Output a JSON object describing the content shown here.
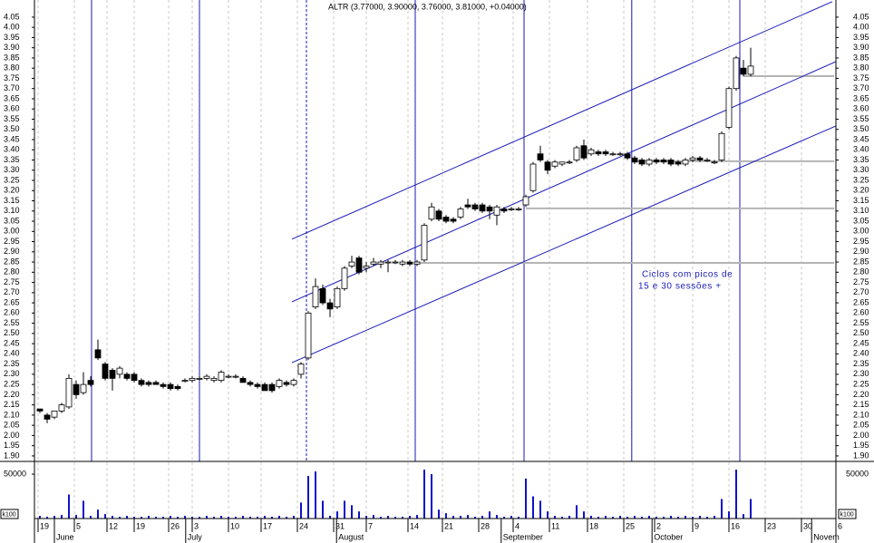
{
  "chart_data": {
    "type": "candlestick",
    "title": "ALTR (3.77000, 3.90000, 3.76000, 3.81000, +0.04000)",
    "annotation": [
      "Ciclos com picos de",
      "15 e 30 sessões +"
    ],
    "up_color": "#ffffff",
    "down_color": "#000000",
    "line_color": "#1a1ab8",
    "level_color": "#b4b4b4",
    "volume_color": "#1010c8",
    "grid": true,
    "xlim": [
      -0.75,
      109.75
    ],
    "xticks": [
      {
        "value": -0.25,
        "label": "19"
      },
      {
        "value": 4.75,
        "label": "5"
      },
      {
        "value": 9.25,
        "label": "12"
      },
      {
        "value": 13,
        "label": "19"
      },
      {
        "value": 17.75,
        "label": "26"
      },
      {
        "value": 21,
        "label": "3"
      },
      {
        "value": 26,
        "label": "10"
      },
      {
        "value": 30.5,
        "label": "17"
      },
      {
        "value": 35.5,
        "label": "24"
      },
      {
        "value": 40.5,
        "label": "31"
      },
      {
        "value": 45,
        "label": "7"
      },
      {
        "value": 50.75,
        "label": "14"
      },
      {
        "value": 55.5,
        "label": "21"
      },
      {
        "value": 60.5,
        "label": "28"
      },
      {
        "value": 65.25,
        "label": "4"
      },
      {
        "value": 70.25,
        "label": "11"
      },
      {
        "value": 75.5,
        "label": "18"
      },
      {
        "value": 80.5,
        "label": "25"
      },
      {
        "value": 84.75,
        "label": "2"
      },
      {
        "value": 90,
        "label": "9"
      },
      {
        "value": 95,
        "label": "16"
      },
      {
        "value": 100,
        "label": "23"
      },
      {
        "value": 105,
        "label": "30"
      },
      {
        "value": 109.75,
        "label": "6"
      }
    ],
    "month_labels": [
      {
        "value": 2,
        "label": "June"
      },
      {
        "value": 20.1,
        "label": "July"
      },
      {
        "value": 40.9,
        "label": "August"
      },
      {
        "value": 63.6,
        "label": "September"
      },
      {
        "value": 84.4,
        "label": "October"
      },
      {
        "value": 106.4,
        "label": "Novem"
      }
    ],
    "ylim": [
      1.873,
      4.134
    ],
    "yticks": [
      {
        "value": 1.9,
        "label": "1.90"
      },
      {
        "value": 1.95,
        "label": "1.95"
      },
      {
        "value": 2.0,
        "label": "2.00"
      },
      {
        "value": 2.05,
        "label": "2.05"
      },
      {
        "value": 2.1,
        "label": "2.10"
      },
      {
        "value": 2.15,
        "label": "2.15"
      },
      {
        "value": 2.2,
        "label": "2.20"
      },
      {
        "value": 2.25,
        "label": "2.25"
      },
      {
        "value": 2.3,
        "label": "2.30"
      },
      {
        "value": 2.35,
        "label": "2.35"
      },
      {
        "value": 2.4,
        "label": "2.40"
      },
      {
        "value": 2.45,
        "label": "2.45"
      },
      {
        "value": 2.5,
        "label": "2.50"
      },
      {
        "value": 2.55,
        "label": "2.55"
      },
      {
        "value": 2.6,
        "label": "2.60"
      },
      {
        "value": 2.65,
        "label": "2.65"
      },
      {
        "value": 2.7,
        "label": "2.70"
      },
      {
        "value": 2.75,
        "label": "2.75"
      },
      {
        "value": 2.8,
        "label": "2.80"
      },
      {
        "value": 2.85,
        "label": "2.85"
      },
      {
        "value": 2.9,
        "label": "2.90"
      },
      {
        "value": 2.95,
        "label": "2.95"
      },
      {
        "value": 3.0,
        "label": "3.00"
      },
      {
        "value": 3.05,
        "label": "3.05"
      },
      {
        "value": 3.1,
        "label": "3.10"
      },
      {
        "value": 3.15,
        "label": "3.15"
      },
      {
        "value": 3.2,
        "label": "3.20"
      },
      {
        "value": 3.25,
        "label": "3.25"
      },
      {
        "value": 3.3,
        "label": "3.30"
      },
      {
        "value": 3.35,
        "label": "3.35"
      },
      {
        "value": 3.4,
        "label": "3.40"
      },
      {
        "value": 3.45,
        "label": "3.45"
      },
      {
        "value": 3.5,
        "label": "3.50"
      },
      {
        "value": 3.55,
        "label": "3.55"
      },
      {
        "value": 3.6,
        "label": "3.60"
      },
      {
        "value": 3.65,
        "label": "3.65"
      },
      {
        "value": 3.7,
        "label": "3.70"
      },
      {
        "value": 3.75,
        "label": "3.75"
      },
      {
        "value": 3.8,
        "label": "3.80"
      },
      {
        "value": 3.85,
        "label": "3.85"
      },
      {
        "value": 3.9,
        "label": "3.90"
      },
      {
        "value": 3.95,
        "label": "3.95"
      },
      {
        "value": 4.0,
        "label": "4.00"
      },
      {
        "value": 4.05,
        "label": "4.05"
      }
    ],
    "vlim": [
      0,
      64286
    ],
    "vticks": [
      50000
    ],
    "volume_unit": "k100",
    "vlines": [
      7.125,
      22,
      36.75,
      51.75,
      66.75,
      81.6,
      96.5
    ],
    "dashed_vlines": [
      36.75
    ],
    "channel": [
      {
        "from": [
          34.75,
          2.962
        ],
        "to": [
          109.25,
          4.126
        ]
      },
      {
        "from": [
          34.75,
          2.655
        ],
        "to": [
          109.75,
          3.832
        ]
      },
      {
        "from": [
          34.75,
          2.357
        ],
        "to": [
          109.75,
          3.517
        ]
      }
    ],
    "levels": [
      {
        "value": 2.846,
        "from": 52,
        "to": 109.5
      },
      {
        "value": 3.113,
        "from": 67,
        "to": 109.5
      },
      {
        "value": 3.344,
        "from": 82,
        "to": 109.5
      },
      {
        "value": 3.761,
        "from": 97,
        "to": 109.5
      }
    ],
    "ohlc": [
      [
        2.13,
        2.13,
        2.11,
        2.12
      ],
      [
        2.1,
        2.11,
        2.06,
        2.08
      ],
      [
        2.09,
        2.12,
        2.08,
        2.12
      ],
      [
        2.12,
        2.16,
        2.11,
        2.15
      ],
      [
        2.14,
        2.3,
        2.13,
        2.28
      ],
      [
        2.25,
        2.27,
        2.18,
        2.2
      ],
      [
        2.21,
        2.31,
        2.2,
        2.25
      ],
      [
        2.27,
        2.29,
        2.24,
        2.25
      ],
      [
        2.42,
        2.47,
        2.37,
        2.38
      ],
      [
        2.35,
        2.36,
        2.27,
        2.28
      ],
      [
        2.32,
        2.33,
        2.22,
        2.28
      ],
      [
        2.3,
        2.34,
        2.28,
        2.33
      ],
      [
        2.3,
        2.31,
        2.27,
        2.28
      ],
      [
        2.3,
        2.31,
        2.26,
        2.27
      ],
      [
        2.27,
        2.28,
        2.24,
        2.25
      ],
      [
        2.26,
        2.27,
        2.24,
        2.25
      ],
      [
        2.26,
        2.27,
        2.25,
        2.25
      ],
      [
        2.25,
        2.26,
        2.23,
        2.24
      ],
      [
        2.25,
        2.26,
        2.22,
        2.23
      ],
      [
        2.24,
        2.25,
        2.22,
        2.23
      ],
      [
        2.27,
        2.28,
        2.26,
        2.27
      ],
      [
        2.27,
        2.29,
        2.26,
        2.28
      ],
      [
        2.28,
        2.29,
        2.27,
        2.28
      ],
      [
        2.28,
        2.3,
        2.27,
        2.29
      ],
      [
        2.27,
        2.29,
        2.26,
        2.28
      ],
      [
        2.27,
        2.32,
        2.26,
        2.31
      ],
      [
        2.29,
        2.3,
        2.28,
        2.29
      ],
      [
        2.29,
        2.3,
        2.28,
        2.29
      ],
      [
        2.28,
        2.29,
        2.26,
        2.26
      ],
      [
        2.26,
        2.27,
        2.24,
        2.25
      ],
      [
        2.25,
        2.26,
        2.23,
        2.24
      ],
      [
        2.25,
        2.26,
        2.22,
        2.22
      ],
      [
        2.25,
        2.26,
        2.21,
        2.22
      ],
      [
        2.24,
        2.28,
        2.23,
        2.27
      ],
      [
        2.26,
        2.27,
        2.24,
        2.25
      ],
      [
        2.25,
        2.28,
        2.24,
        2.27
      ],
      [
        2.3,
        2.36,
        2.28,
        2.35
      ],
      [
        2.38,
        2.61,
        2.37,
        2.6
      ],
      [
        2.63,
        2.77,
        2.62,
        2.73
      ],
      [
        2.72,
        2.74,
        2.64,
        2.65
      ],
      [
        2.65,
        2.67,
        2.58,
        2.62
      ],
      [
        2.63,
        2.73,
        2.62,
        2.72
      ],
      [
        2.72,
        2.83,
        2.71,
        2.82
      ],
      [
        2.83,
        2.88,
        2.82,
        2.85
      ],
      [
        2.87,
        2.88,
        2.79,
        2.8
      ],
      [
        2.82,
        2.85,
        2.8,
        2.83
      ],
      [
        2.84,
        2.87,
        2.83,
        2.85
      ],
      [
        2.84,
        2.86,
        2.82,
        2.85
      ],
      [
        2.85,
        2.86,
        2.8,
        2.85
      ],
      [
        2.85,
        2.86,
        2.84,
        2.85
      ],
      [
        2.84,
        2.86,
        2.83,
        2.85
      ],
      [
        2.85,
        2.86,
        2.83,
        2.84
      ],
      [
        2.84,
        2.86,
        2.83,
        2.85
      ],
      [
        2.86,
        3.04,
        2.85,
        3.03
      ],
      [
        3.06,
        3.14,
        3.05,
        3.12
      ],
      [
        3.1,
        3.11,
        3.05,
        3.06
      ],
      [
        3.07,
        3.08,
        3.04,
        3.05
      ],
      [
        3.06,
        3.07,
        3.04,
        3.05
      ],
      [
        3.07,
        3.12,
        3.06,
        3.11
      ],
      [
        3.13,
        3.16,
        3.11,
        3.12
      ],
      [
        3.13,
        3.14,
        3.1,
        3.11
      ],
      [
        3.13,
        3.14,
        3.09,
        3.1
      ],
      [
        3.12,
        3.13,
        3.06,
        3.1
      ],
      [
        3.08,
        3.13,
        3.03,
        3.12
      ],
      [
        3.11,
        3.12,
        3.09,
        3.1
      ],
      [
        3.11,
        3.12,
        3.1,
        3.11
      ],
      [
        3.11,
        3.12,
        3.1,
        3.11
      ],
      [
        3.13,
        3.18,
        3.12,
        3.17
      ],
      [
        3.2,
        3.34,
        3.19,
        3.33
      ],
      [
        3.38,
        3.42,
        3.34,
        3.35
      ],
      [
        3.34,
        3.35,
        3.28,
        3.3
      ],
      [
        3.32,
        3.35,
        3.31,
        3.34
      ],
      [
        3.33,
        3.34,
        3.32,
        3.34
      ],
      [
        3.34,
        3.35,
        3.33,
        3.34
      ],
      [
        3.35,
        3.42,
        3.34,
        3.41
      ],
      [
        3.42,
        3.45,
        3.35,
        3.36
      ],
      [
        3.38,
        3.41,
        3.37,
        3.4
      ],
      [
        3.39,
        3.4,
        3.37,
        3.38
      ],
      [
        3.39,
        3.4,
        3.37,
        3.38
      ],
      [
        3.38,
        3.39,
        3.37,
        3.38
      ],
      [
        3.38,
        3.39,
        3.37,
        3.38
      ],
      [
        3.38,
        3.39,
        3.35,
        3.36
      ],
      [
        3.36,
        3.37,
        3.33,
        3.34
      ],
      [
        3.35,
        3.36,
        3.32,
        3.33
      ],
      [
        3.33,
        3.36,
        3.32,
        3.35
      ],
      [
        3.35,
        3.36,
        3.33,
        3.34
      ],
      [
        3.35,
        3.36,
        3.33,
        3.34
      ],
      [
        3.35,
        3.36,
        3.32,
        3.33
      ],
      [
        3.34,
        3.35,
        3.32,
        3.33
      ],
      [
        3.33,
        3.36,
        3.32,
        3.35
      ],
      [
        3.35,
        3.37,
        3.34,
        3.36
      ],
      [
        3.36,
        3.37,
        3.34,
        3.35
      ],
      [
        3.35,
        3.36,
        3.34,
        3.35
      ],
      [
        3.34,
        3.35,
        3.33,
        3.34
      ],
      [
        3.35,
        3.49,
        3.34,
        3.48
      ],
      [
        3.51,
        3.71,
        3.5,
        3.7
      ],
      [
        3.7,
        3.86,
        3.69,
        3.85
      ],
      [
        3.8,
        3.84,
        3.76,
        3.77
      ],
      [
        3.77,
        3.9,
        3.76,
        3.81
      ]
    ],
    "volume": [
      3000,
      2000,
      3000,
      4000,
      27000,
      4000,
      20000,
      3000,
      10000,
      5000,
      3000,
      2000,
      3000,
      2000,
      2000,
      3000,
      2000,
      2000,
      3000,
      2000,
      3000,
      2000,
      2000,
      3000,
      2000,
      3000,
      2000,
      2000,
      3000,
      2000,
      2000,
      3000,
      2000,
      3000,
      2000,
      3000,
      18000,
      48000,
      53000,
      20000,
      3000,
      8000,
      20000,
      15000,
      8000,
      3000,
      4000,
      2000,
      3000,
      2000,
      2000,
      3000,
      4000,
      55000,
      50000,
      10000,
      6000,
      3000,
      3000,
      4000,
      2000,
      3000,
      8000,
      4000,
      2000,
      3000,
      2000,
      45000,
      25000,
      20000,
      8000,
      3000,
      2000,
      3000,
      15000,
      8000,
      3000,
      2000,
      3000,
      2000,
      3000,
      2000,
      3000,
      2000,
      3000,
      2000,
      2000,
      3000,
      2000,
      3000,
      2000,
      3000,
      2000,
      3000,
      22000,
      8000,
      55000,
      5000,
      22000
    ]
  }
}
